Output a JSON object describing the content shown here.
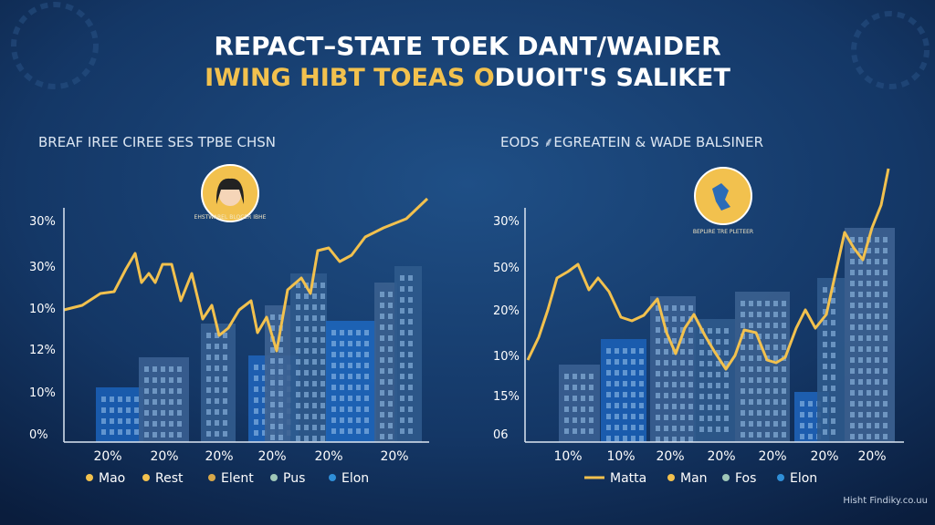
{
  "header": {
    "title_line1": "REPACT–STATE TOEK DANT/WAIDER",
    "title_line2_highlight": "IWING HIBT TOEAS O",
    "title_line2_rest": "DUOIT'S SALIKET"
  },
  "panels": [
    {
      "title": "BREAF IREE CIREE SES TPBE CHSN",
      "badge_caption": "EHSTWAREL BLOCER IBHE",
      "y_labels": [
        "30%",
        "30%",
        "10%",
        "12%",
        "10%",
        "0%"
      ],
      "x_labels": [
        "20%",
        "20%",
        "20%",
        "20%",
        "20%",
        "20%"
      ],
      "legend": [
        "Mao",
        "Rest",
        "Elent",
        "Pus",
        "Elon"
      ]
    },
    {
      "title": "EODS ⸙EGREATEIN & WADE BALSINER",
      "badge_caption": "BEPLIRE TRE PLETEER",
      "y_labels": [
        "30%",
        "50%",
        "20%",
        "10%",
        "15%",
        "06"
      ],
      "x_labels": [
        "10%",
        "10%",
        "20%",
        "20%",
        "20%",
        "20%",
        "20%"
      ],
      "legend": [
        "Matta",
        "Man",
        "Fos",
        "Elon"
      ]
    }
  ],
  "watermark": "Hisht Findiky.co.uu"
}
